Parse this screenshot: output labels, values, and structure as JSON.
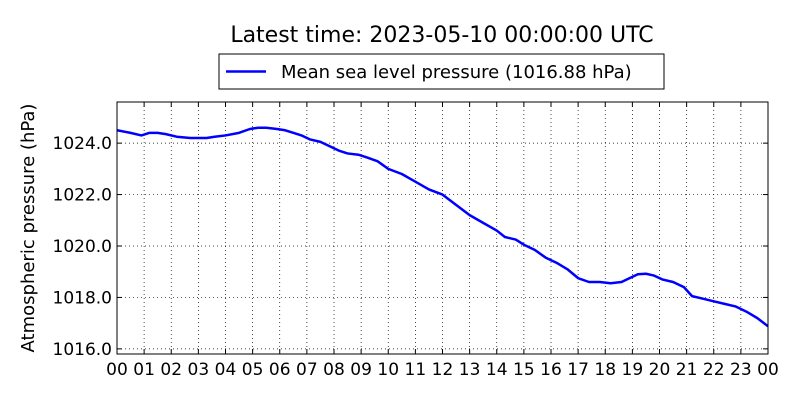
{
  "chart_data": {
    "type": "line",
    "title": "Latest time: 2023-05-10 00:00:00 UTC",
    "xlabel": "",
    "ylabel": "Atmospheric pressure (hPa)",
    "legend": {
      "position": "top-center",
      "entries": [
        "Mean sea level pressure (1016.88 hPa)"
      ]
    },
    "grid": true,
    "xlim": [
      0,
      24
    ],
    "ylim": [
      1015.8,
      1025.6
    ],
    "x_ticks": [
      "00",
      "01",
      "02",
      "03",
      "04",
      "05",
      "06",
      "07",
      "08",
      "09",
      "10",
      "11",
      "12",
      "13",
      "14",
      "15",
      "16",
      "17",
      "18",
      "19",
      "20",
      "21",
      "22",
      "23",
      "00"
    ],
    "y_ticks": [
      "1016.0",
      "1018.0",
      "1020.0",
      "1022.0",
      "1024.0"
    ],
    "y_tick_values": [
      1016.0,
      1018.0,
      1020.0,
      1022.0,
      1024.0
    ],
    "series": [
      {
        "name": "Mean sea level pressure (1016.88 hPa)",
        "color": "#0000ff",
        "x": [
          0,
          0.5,
          0.9,
          1.2,
          1.5,
          1.8,
          2.2,
          2.7,
          3.0,
          3.3,
          3.6,
          4.0,
          4.5,
          4.9,
          5.2,
          5.5,
          5.9,
          6.2,
          6.5,
          6.8,
          7.1,
          7.5,
          7.9,
          8.2,
          8.5,
          8.9,
          9.2,
          9.6,
          10.0,
          10.5,
          11.0,
          11.5,
          12.0,
          12.5,
          13.0,
          13.5,
          14.0,
          14.3,
          14.7,
          15.0,
          15.4,
          15.8,
          16.2,
          16.6,
          17.0,
          17.4,
          17.8,
          18.2,
          18.6,
          18.9,
          19.2,
          19.5,
          19.8,
          20.1,
          20.5,
          20.9,
          21.2,
          21.6,
          22.0,
          22.4,
          22.8,
          23.2,
          23.6,
          24.0
        ],
        "values": [
          1024.5,
          1024.4,
          1024.3,
          1024.4,
          1024.4,
          1024.35,
          1024.25,
          1024.2,
          1024.2,
          1024.2,
          1024.25,
          1024.3,
          1024.4,
          1024.55,
          1024.6,
          1024.6,
          1024.55,
          1024.5,
          1024.4,
          1024.3,
          1024.15,
          1024.05,
          1023.85,
          1023.7,
          1023.6,
          1023.55,
          1023.45,
          1023.3,
          1023.0,
          1022.8,
          1022.5,
          1022.2,
          1022.0,
          1021.6,
          1021.2,
          1020.9,
          1020.6,
          1020.35,
          1020.25,
          1020.05,
          1019.85,
          1019.55,
          1019.35,
          1019.1,
          1018.75,
          1018.6,
          1018.6,
          1018.55,
          1018.6,
          1018.75,
          1018.9,
          1018.92,
          1018.85,
          1018.7,
          1018.6,
          1018.4,
          1018.05,
          1017.95,
          1017.85,
          1017.75,
          1017.65,
          1017.45,
          1017.2,
          1016.88
        ]
      }
    ]
  }
}
